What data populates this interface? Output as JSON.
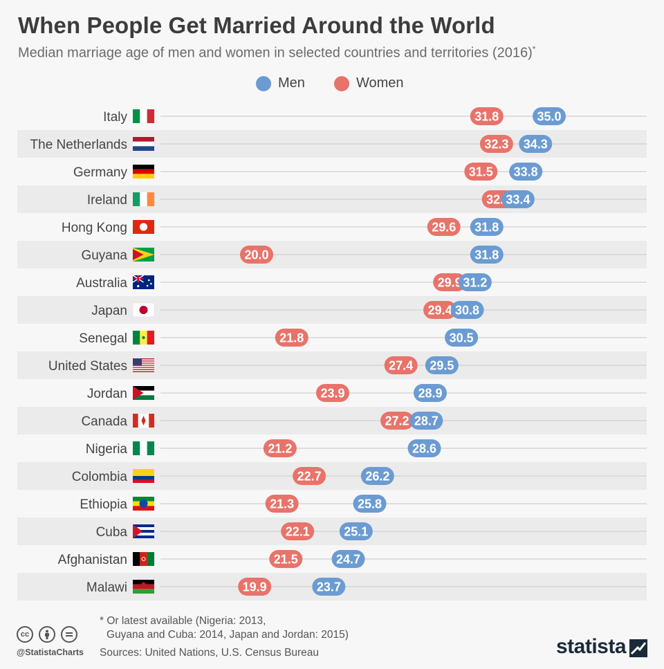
{
  "title": "When People Get Married Around the World",
  "subtitle": "Median marriage age of men and women in selected countries and territories (2016)",
  "subtitle_mark": "*",
  "legend": {
    "men": "Men",
    "women": "Women"
  },
  "colors": {
    "men": "#6b9bd2",
    "women": "#e8736a",
    "stripe": "#ebebeb",
    "line": "#cfcfcf"
  },
  "chart_data": {
    "type": "dot",
    "xlim": [
      0,
      35
    ],
    "categories": [
      "Italy",
      "The Netherlands",
      "Germany",
      "Ireland",
      "Hong Kong",
      "Guyana",
      "Australia",
      "Japan",
      "Senegal",
      "United States",
      "Jordan",
      "Canada",
      "Nigeria",
      "Colombia",
      "Ethiopia",
      "Cuba",
      "Afghanistan",
      "Malawi"
    ],
    "flags": [
      "italy-flag",
      "netherlands-flag",
      "germany-flag",
      "ireland-flag",
      "hong-kong-flag",
      "guyana-flag",
      "australia-flag",
      "japan-flag",
      "senegal-flag",
      "usa-flag",
      "jordan-flag",
      "canada-flag",
      "nigeria-flag",
      "colombia-flag",
      "ethiopia-flag",
      "cuba-flag",
      "afghanistan-flag",
      "malawi-flag"
    ],
    "series": [
      {
        "name": "Men",
        "values": [
          35.0,
          34.3,
          33.8,
          33.4,
          31.8,
          31.8,
          31.2,
          30.8,
          30.5,
          29.5,
          28.9,
          28.7,
          28.6,
          26.2,
          25.8,
          25.1,
          24.7,
          23.7
        ]
      },
      {
        "name": "Women",
        "values": [
          31.8,
          32.3,
          31.5,
          32.4,
          29.6,
          20.0,
          29.9,
          29.4,
          21.8,
          27.4,
          23.9,
          27.2,
          21.2,
          22.7,
          21.3,
          22.1,
          21.5,
          19.9
        ]
      }
    ]
  },
  "footnote": {
    "line1": "* Or latest available (Nigeria: 2013,",
    "line2": "Guyana and Cuba: 2014, Japan and Jordan: 2015)"
  },
  "sources": "Sources: United Nations, U.S. Census Bureau",
  "handle": "@StatistaCharts",
  "logo": "statista"
}
